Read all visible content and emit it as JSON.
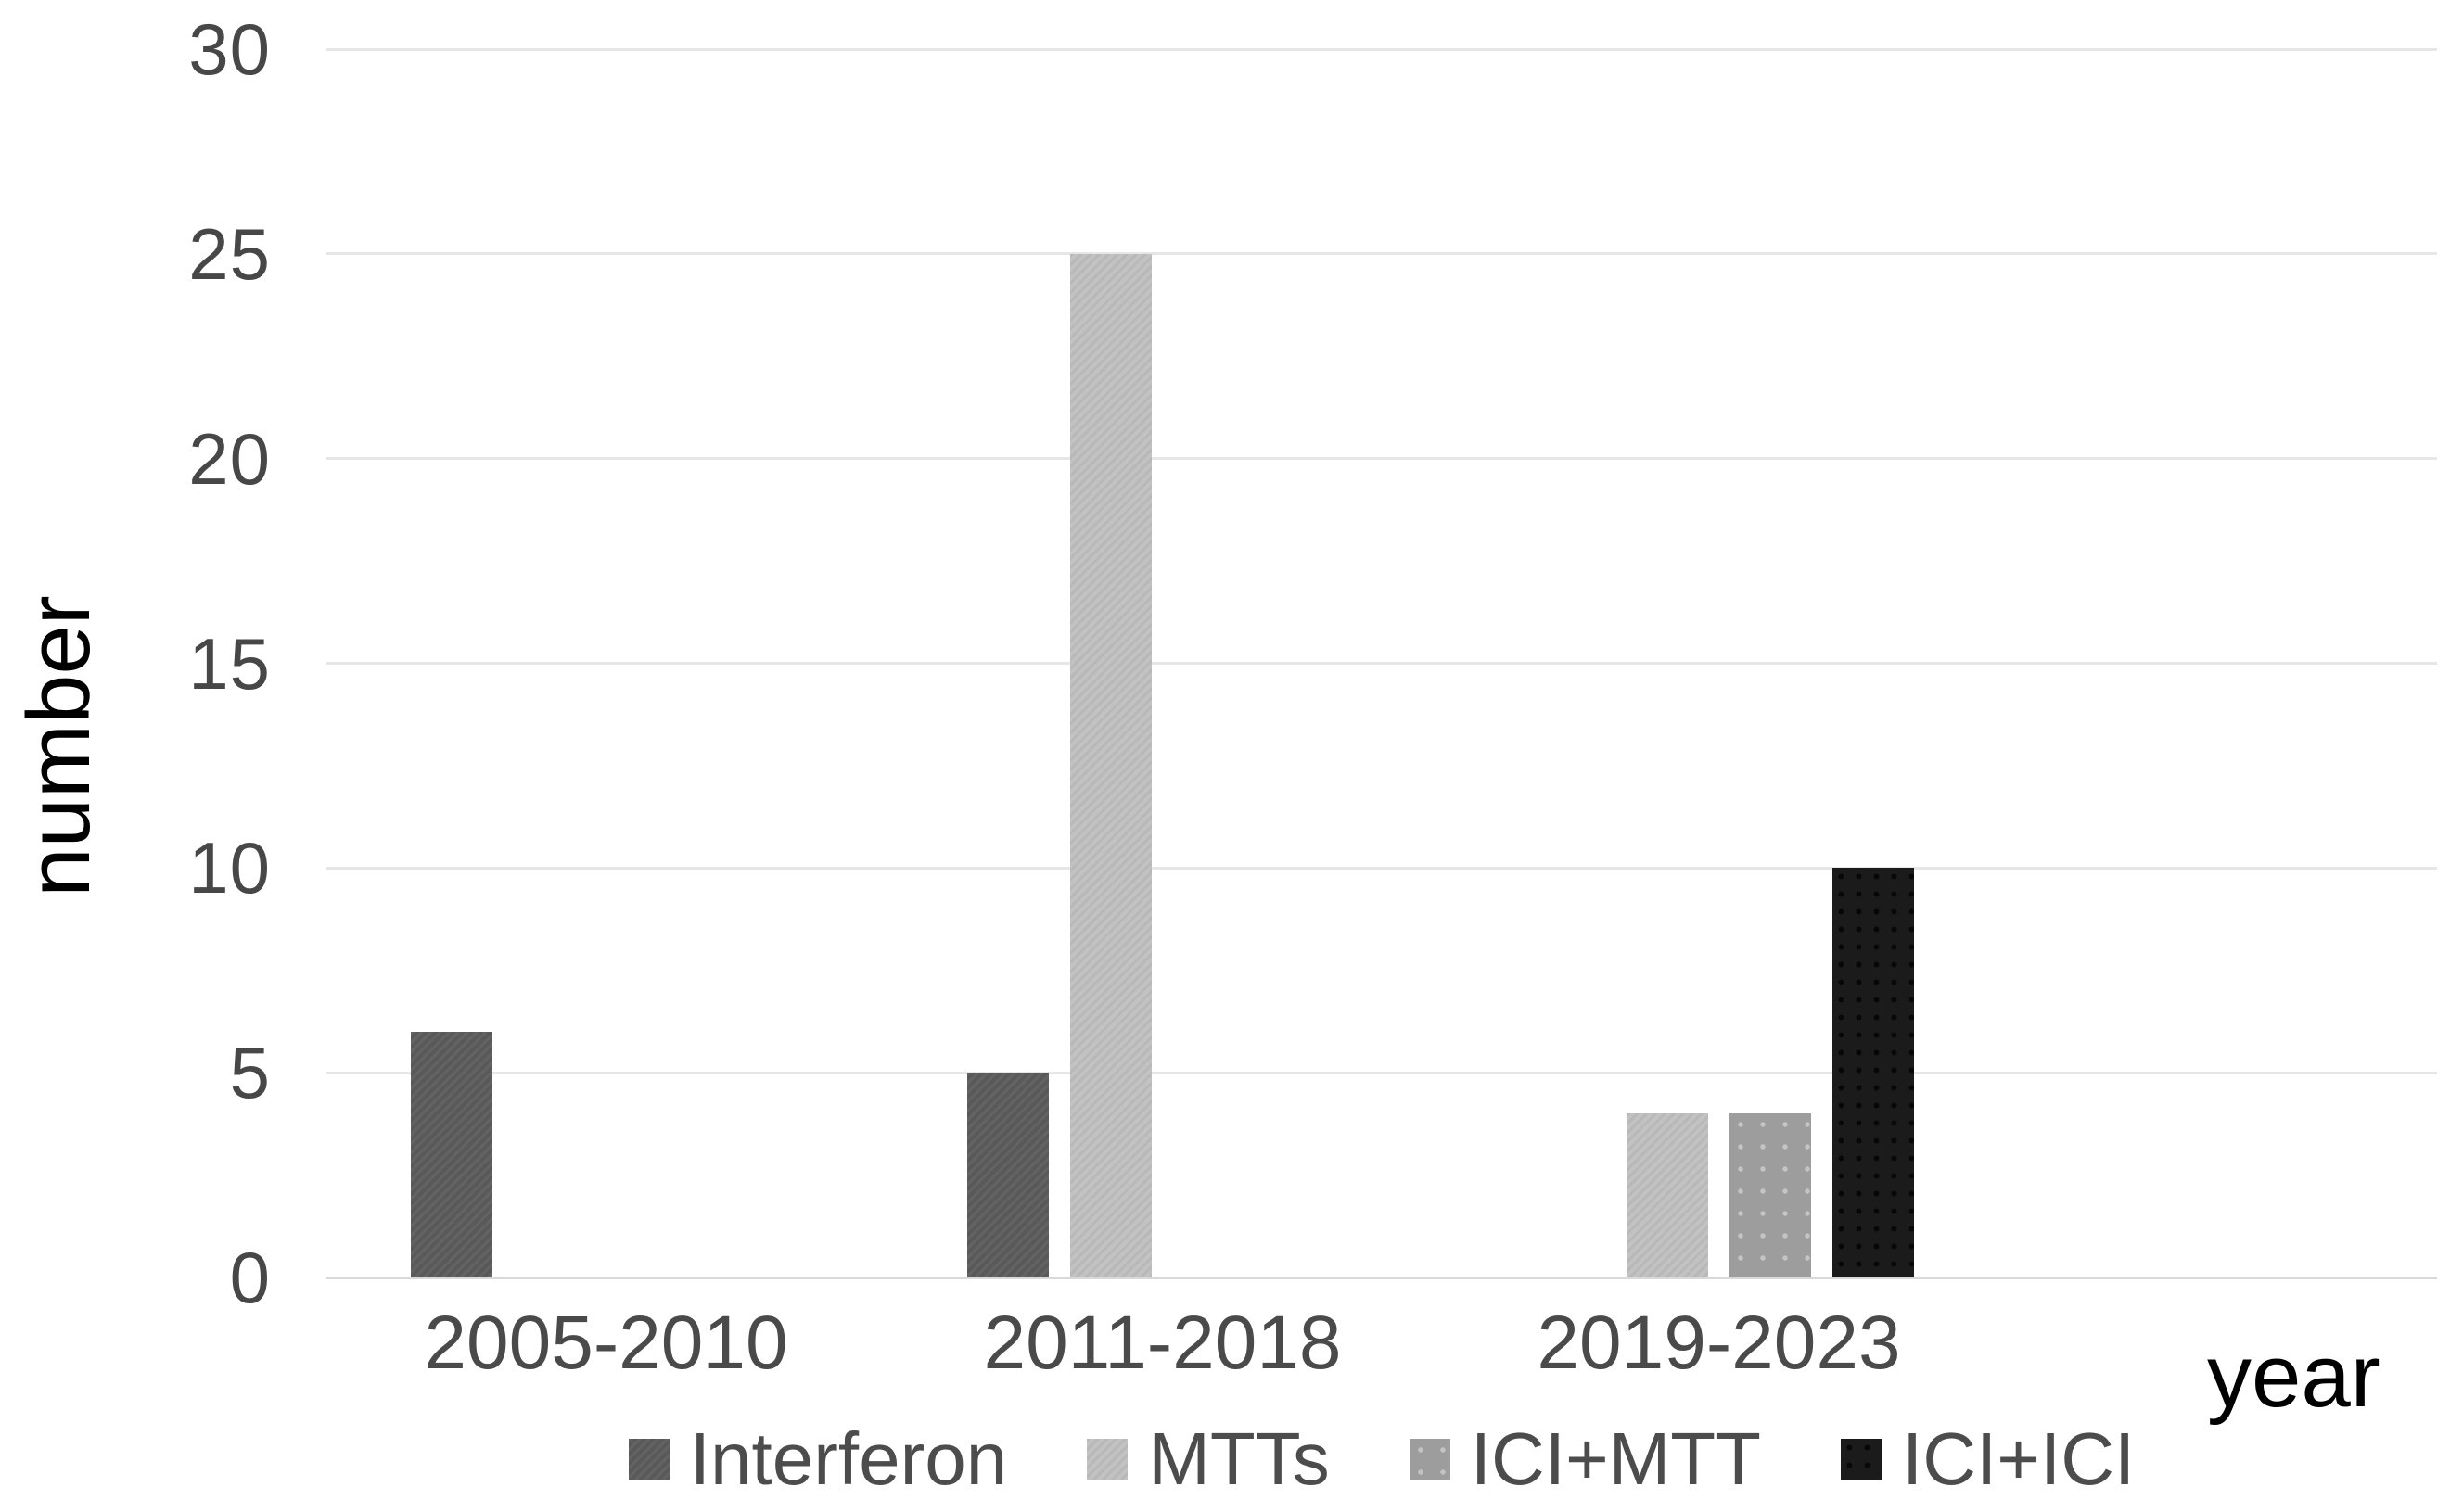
{
  "chart_data": {
    "type": "bar",
    "title": "",
    "xlabel": "year",
    "ylabel": "number",
    "categories": [
      "2005-2010",
      "2011-2018",
      "2019-2023"
    ],
    "series": [
      {
        "name": "Interferon",
        "color": "#595959",
        "values": [
          6,
          5,
          null
        ]
      },
      {
        "name": "MTTs",
        "color": "#c2c2c2",
        "values": [
          null,
          25,
          4
        ]
      },
      {
        "name": "ICI+MTT",
        "color": "#9d9d9d",
        "values": [
          null,
          null,
          4
        ]
      },
      {
        "name": "ICI+ICI",
        "color": "#1b1b1b",
        "values": [
          null,
          null,
          10
        ]
      }
    ],
    "ylim": [
      0,
      30
    ],
    "ytick_interval": 5,
    "yticks": [
      0,
      5,
      10,
      15,
      20,
      25,
      30
    ],
    "grid": true,
    "legend_position": "bottom",
    "background_color": "#ffffff",
    "gridline_color": "#e6e6e6"
  }
}
